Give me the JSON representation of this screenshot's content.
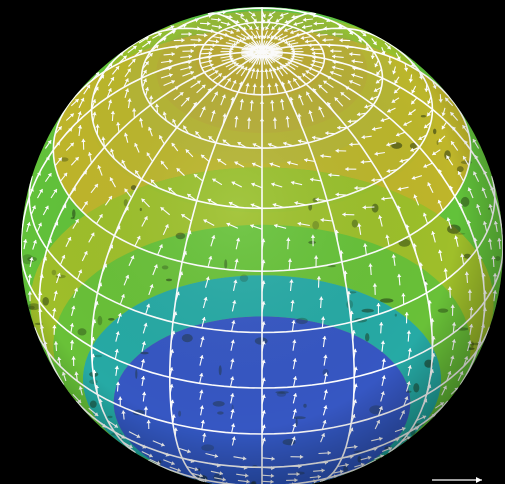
{
  "scene": {
    "subject": "planet-globe-wind-field",
    "colors": {
      "background": "#000000",
      "band_polar": "#5a1fb0",
      "band_subpolar": "#2a4fd0",
      "band_cool": "#19a9b0",
      "band_mid": "#62c23a",
      "band_warm": "#9cc02a",
      "band_tropical": "#c2b52a",
      "grid": "#ffffff",
      "arrows": "#ffffff",
      "surface_features": "#1a2a10"
    },
    "icons": {
      "wind_vector": "arrow-icon",
      "scale_vector": "arrow-right-icon"
    }
  }
}
